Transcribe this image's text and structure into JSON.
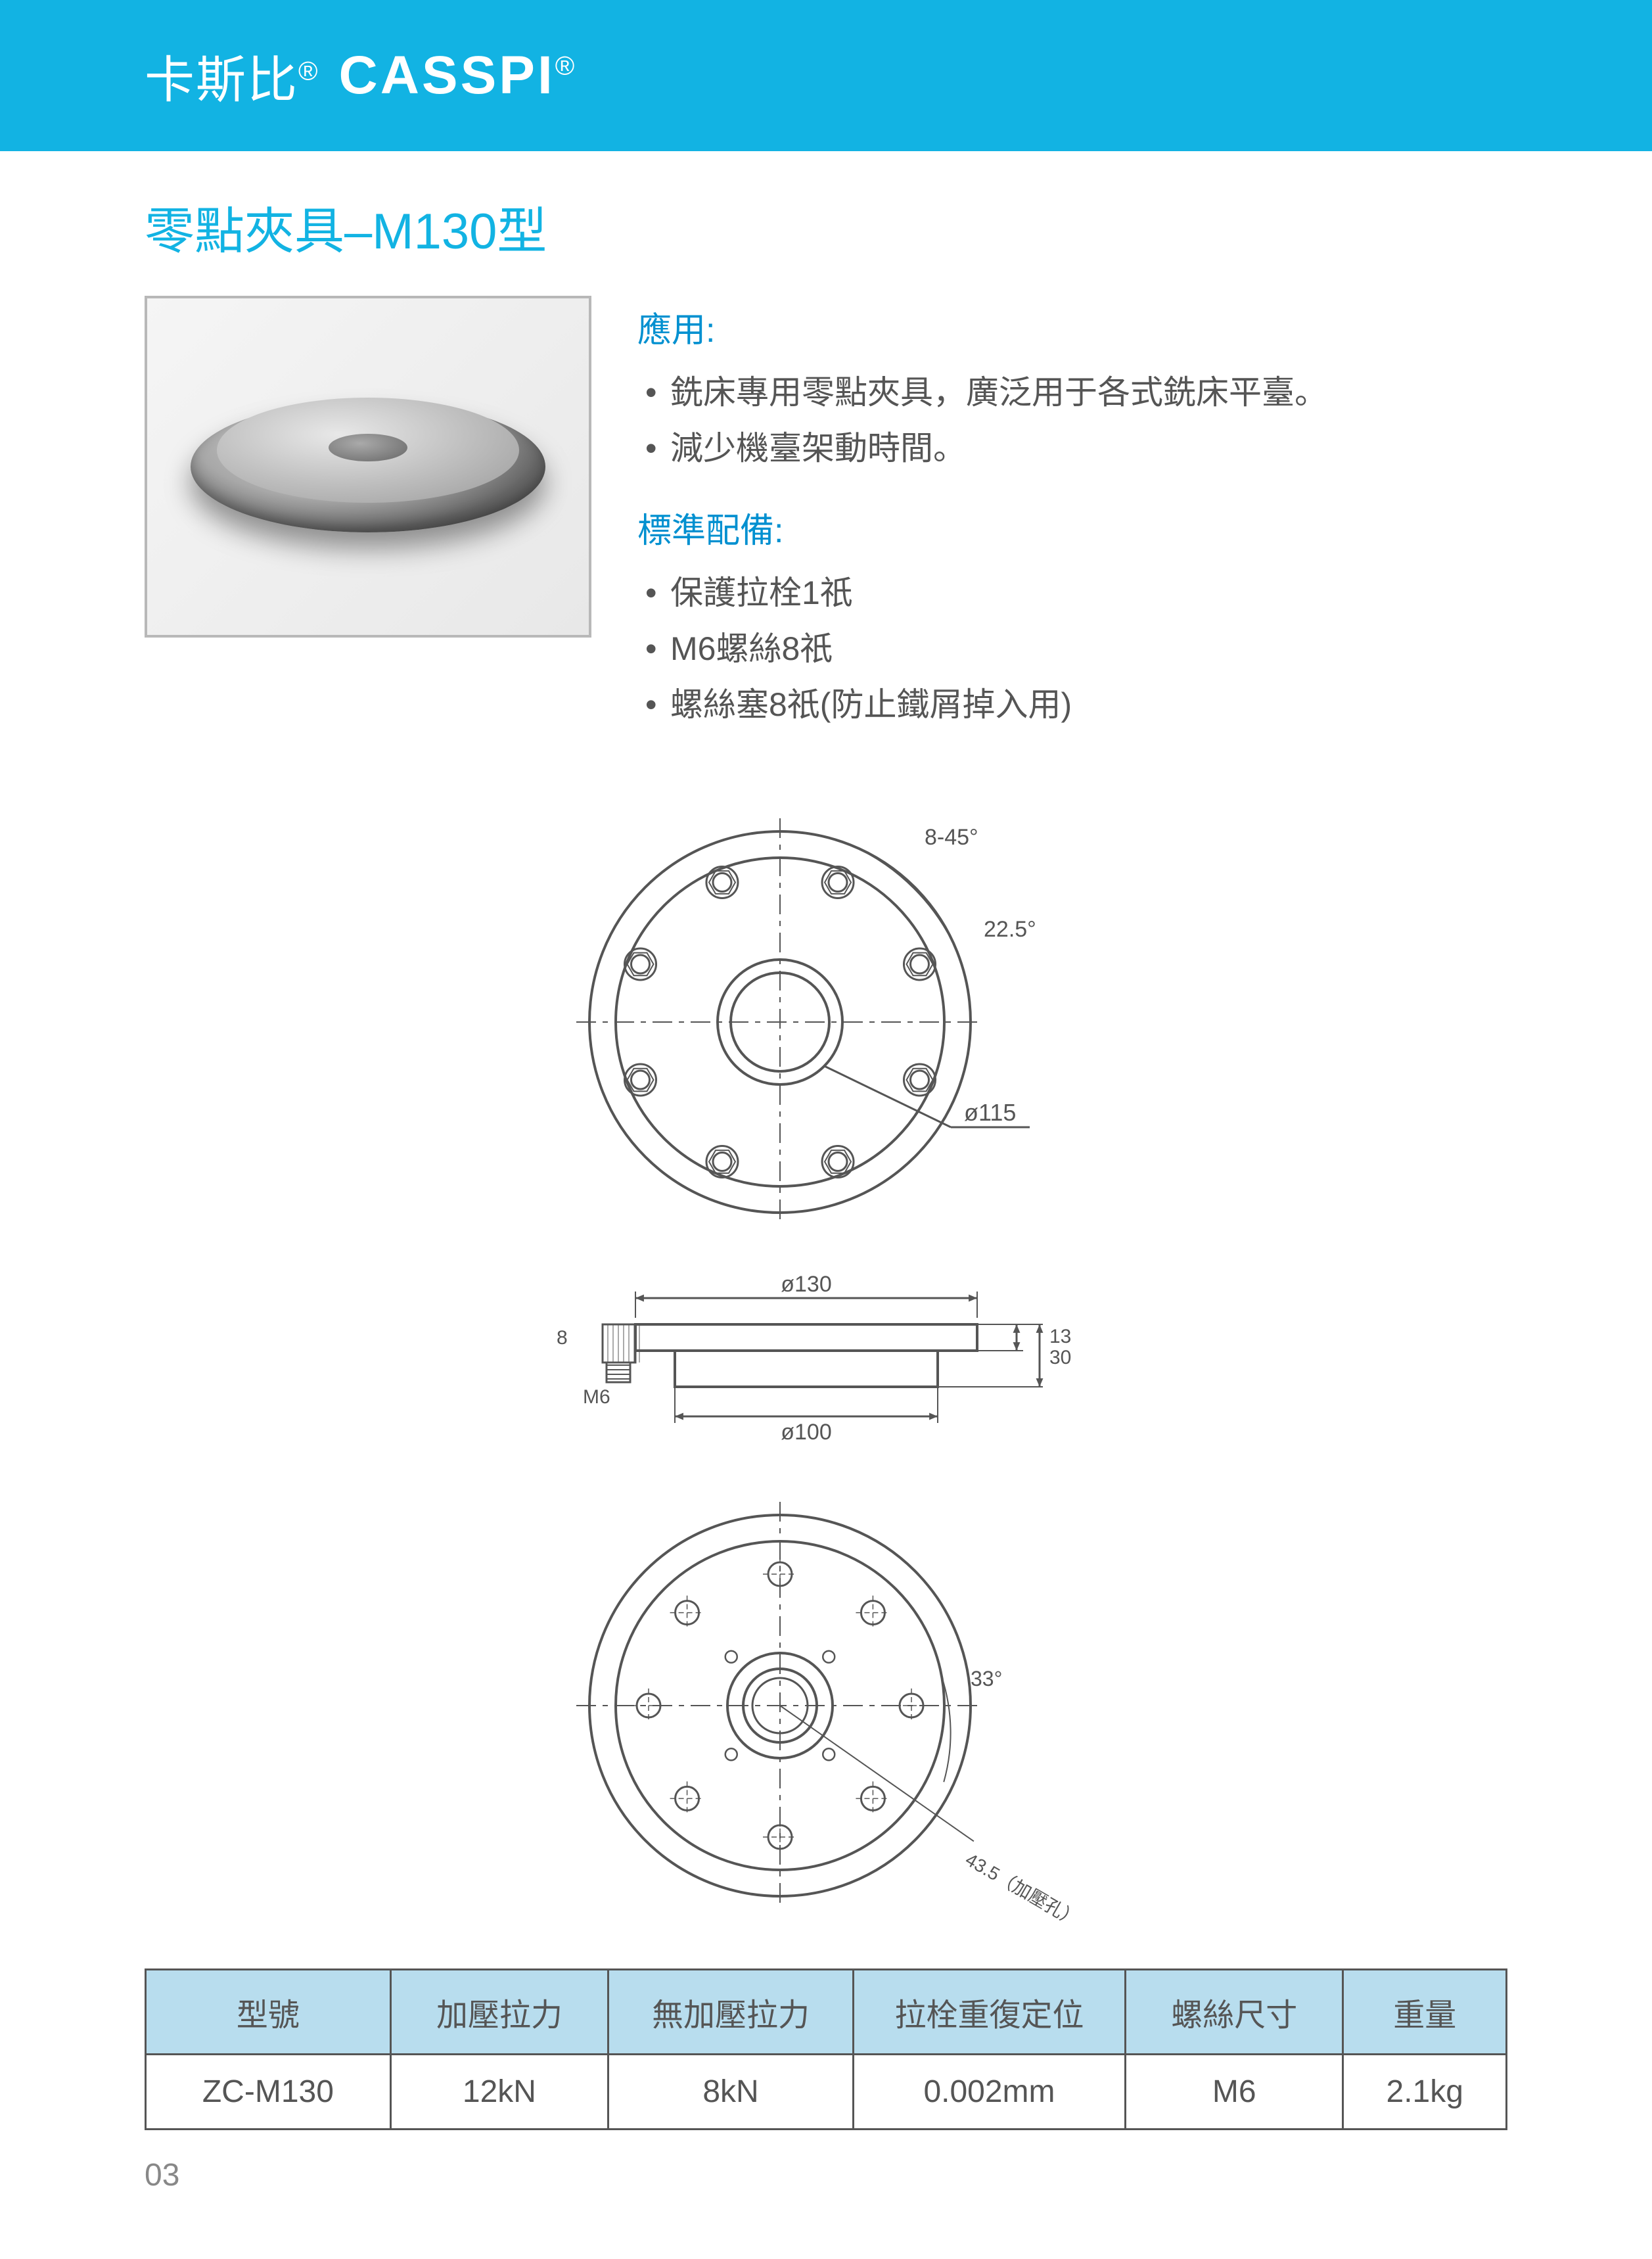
{
  "brand": {
    "cn": "卡斯比",
    "en": "CASSPI",
    "reg": "®"
  },
  "title": "零點夾具–M130型",
  "application": {
    "heading": "應用:",
    "items": [
      "銑床專用零點夾具，廣泛用于各式銑床平臺。",
      "減少機臺架動時間。"
    ]
  },
  "standard": {
    "heading": "標準配備:",
    "items": [
      "保護拉栓1祇",
      "M6螺絲8祇",
      "螺絲塞8祇(防止鐵屑掉入用)"
    ]
  },
  "drawing_top": {
    "angle1": "8-45°",
    "angle2": "22.5°",
    "dia": "ø115",
    "outer_r": 290,
    "inner_r": 250,
    "bore_r": 95,
    "bolt_circle_r": 230,
    "bolt_hole_r": 24,
    "n_holes": 8,
    "stroke": "#555",
    "stroke_w": 4
  },
  "drawing_side": {
    "dia_top": "ø130",
    "dia_bot": "ø100",
    "h_total": "30",
    "h_top": "13",
    "h_screw": "8",
    "screw": "M6",
    "stroke": "#555",
    "stroke_w": 4
  },
  "drawing_bottom": {
    "angle": "33°",
    "radius_label": "43.5（加壓孔）",
    "outer_r": 290,
    "mid_r": 250,
    "bore_r": 80,
    "bore_inner_r": 56,
    "bolt_circle_r": 200,
    "small_hole_r": 18,
    "n_holes": 8,
    "stroke": "#555",
    "stroke_w": 4
  },
  "table": {
    "columns": [
      "型號",
      "加壓拉力",
      "無加壓拉力",
      "拉栓重復定位",
      "螺絲尺寸",
      "重量"
    ],
    "rows": [
      [
        "ZC-M130",
        "12kN",
        "8kN",
        "0.002mm",
        "M6",
        "2.1kg"
      ]
    ],
    "col_widths": [
      "18%",
      "16%",
      "18%",
      "20%",
      "16%",
      "12%"
    ],
    "header_bg": "#b8ddee",
    "border": "#555"
  },
  "page": "03"
}
